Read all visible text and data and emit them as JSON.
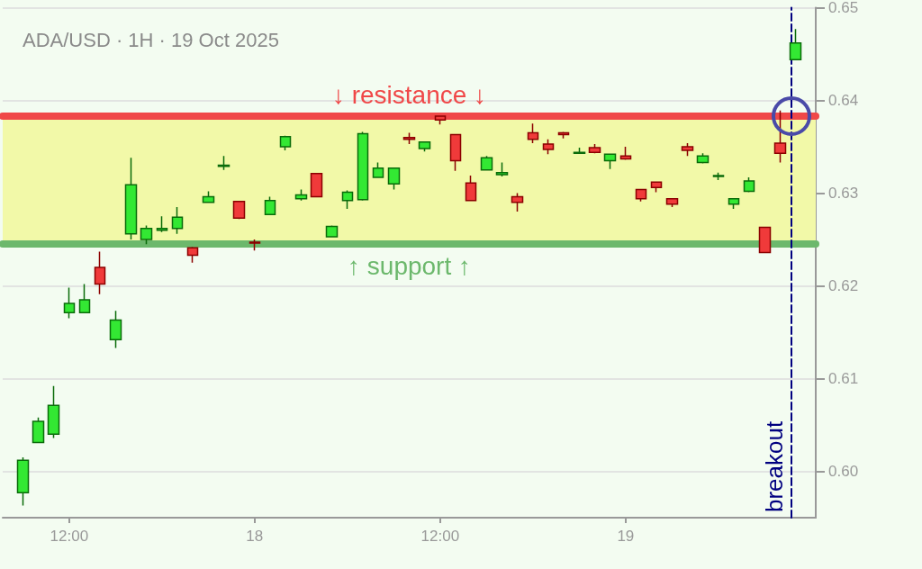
{
  "chart_data": {
    "type": "candlestick",
    "title": "ADA/USD · 1H · 19 Oct 2025",
    "x": [
      "2025-10-17T09:00",
      "2025-10-17T10:00",
      "2025-10-17T11:00",
      "2025-10-17T12:00",
      "2025-10-17T13:00",
      "2025-10-17T14:00",
      "2025-10-17T15:00",
      "2025-10-17T16:00",
      "2025-10-17T17:00",
      "2025-10-17T18:00",
      "2025-10-17T19:00",
      "2025-10-17T20:00",
      "2025-10-17T21:00",
      "2025-10-17T22:00",
      "2025-10-17T23:00",
      "2025-10-18T00:00",
      "2025-10-18T01:00",
      "2025-10-18T02:00",
      "2025-10-18T03:00",
      "2025-10-18T04:00",
      "2025-10-18T05:00",
      "2025-10-18T06:00",
      "2025-10-18T07:00",
      "2025-10-18T08:00",
      "2025-10-18T09:00",
      "2025-10-18T10:00",
      "2025-10-18T11:00",
      "2025-10-18T12:00",
      "2025-10-18T13:00",
      "2025-10-18T14:00",
      "2025-10-18T15:00",
      "2025-10-18T16:00",
      "2025-10-18T17:00",
      "2025-10-18T18:00",
      "2025-10-18T19:00",
      "2025-10-18T20:00",
      "2025-10-18T21:00",
      "2025-10-18T22:00",
      "2025-10-18T23:00",
      "2025-10-19T00:00",
      "2025-10-19T01:00",
      "2025-10-19T02:00",
      "2025-10-19T03:00",
      "2025-10-19T04:00",
      "2025-10-19T05:00",
      "2025-10-19T06:00",
      "2025-10-19T07:00",
      "2025-10-19T08:00",
      "2025-10-19T09:00",
      "2025-10-19T10:00",
      "2025-10-19T11:00"
    ],
    "ohlc": [
      [
        0.5977,
        0.6015,
        0.5963,
        0.6012
      ],
      [
        0.6031,
        0.6058,
        0.6031,
        0.6054
      ],
      [
        0.604,
        0.6092,
        0.6036,
        0.6071
      ],
      [
        0.6171,
        0.6198,
        0.6165,
        0.6181
      ],
      [
        0.6171,
        0.6202,
        0.6171,
        0.6185
      ],
      [
        0.622,
        0.6237,
        0.6191,
        0.6202
      ],
      [
        0.6142,
        0.6173,
        0.6133,
        0.6163
      ],
      [
        0.6256,
        0.6338,
        0.625,
        0.6309
      ],
      [
        0.625,
        0.6265,
        0.6245,
        0.6262
      ],
      [
        0.626,
        0.6275,
        0.6258,
        0.6262
      ],
      [
        0.6262,
        0.6285,
        0.6256,
        0.6274
      ],
      [
        0.6241,
        0.6242,
        0.6225,
        0.6233
      ],
      [
        0.629,
        0.6302,
        0.629,
        0.6296
      ],
      [
        0.6329,
        0.634,
        0.6325,
        0.633
      ],
      [
        0.6291,
        0.6291,
        0.6272,
        0.6273
      ],
      [
        0.6247,
        0.625,
        0.6238,
        0.6246
      ],
      [
        0.6277,
        0.6296,
        0.6277,
        0.6292
      ],
      [
        0.635,
        0.6362,
        0.6346,
        0.6361
      ],
      [
        0.6294,
        0.6304,
        0.6292,
        0.6298
      ],
      [
        0.6321,
        0.6321,
        0.6296,
        0.6296
      ],
      [
        0.6253,
        0.6265,
        0.6253,
        0.6264
      ],
      [
        0.6292,
        0.6303,
        0.6283,
        0.6301
      ],
      [
        0.6293,
        0.6366,
        0.6292,
        0.6364
      ],
      [
        0.6317,
        0.6333,
        0.6317,
        0.6327
      ],
      [
        0.631,
        0.6327,
        0.6304,
        0.6327
      ],
      [
        0.636,
        0.6365,
        0.6353,
        0.6358
      ],
      [
        0.6348,
        0.6355,
        0.6345,
        0.6355
      ],
      [
        0.6383,
        0.6383,
        0.6374,
        0.6379
      ],
      [
        0.6363,
        0.6363,
        0.6324,
        0.6335
      ],
      [
        0.6311,
        0.6319,
        0.6292,
        0.6292
      ],
      [
        0.6325,
        0.634,
        0.6325,
        0.6338
      ],
      [
        0.632,
        0.6333,
        0.6318,
        0.6322
      ],
      [
        0.6296,
        0.63,
        0.628,
        0.629
      ],
      [
        0.6365,
        0.6375,
        0.6354,
        0.6358
      ],
      [
        0.6353,
        0.6358,
        0.6342,
        0.6347
      ],
      [
        0.6365,
        0.6366,
        0.6359,
        0.6363
      ],
      [
        0.6343,
        0.6349,
        0.6343,
        0.6344
      ],
      [
        0.6349,
        0.6353,
        0.6343,
        0.6344
      ],
      [
        0.6335,
        0.6342,
        0.6326,
        0.6342
      ],
      [
        0.634,
        0.635,
        0.6336,
        0.6337
      ],
      [
        0.6304,
        0.6304,
        0.6291,
        0.6294
      ],
      [
        0.6312,
        0.6312,
        0.6301,
        0.6306
      ],
      [
        0.6294,
        0.6294,
        0.6285,
        0.6288
      ],
      [
        0.635,
        0.6354,
        0.634,
        0.6346
      ],
      [
        0.6333,
        0.6343,
        0.6332,
        0.634
      ],
      [
        0.6318,
        0.6322,
        0.6314,
        0.6319
      ],
      [
        0.6288,
        0.6294,
        0.6283,
        0.6294
      ],
      [
        0.6302,
        0.6317,
        0.6301,
        0.6313
      ],
      [
        0.6263,
        0.6263,
        0.6236,
        0.6236
      ],
      [
        0.6354,
        0.6389,
        0.6333,
        0.6343
      ],
      [
        0.6444,
        0.6477,
        0.6444,
        0.6462
      ]
    ],
    "xlim": [
      "2025-10-17T07:42",
      "2025-10-19T12:18"
    ],
    "xticks": [
      {
        "value": "2025-10-17T12:00",
        "label": "12:00"
      },
      {
        "value": "2025-10-18T00:00",
        "label": "18"
      },
      {
        "value": "2025-10-18T12:00",
        "label": "12:00"
      },
      {
        "value": "2025-10-19T00:00",
        "label": "19"
      }
    ],
    "ylim": [
      0.595,
      0.65
    ],
    "yticks": [
      {
        "value": 0.6,
        "label": "0.60"
      },
      {
        "value": 0.61,
        "label": "0.61"
      },
      {
        "value": 0.62,
        "label": "0.62"
      },
      {
        "value": 0.63,
        "label": "0.63"
      },
      {
        "value": 0.64,
        "label": "0.64"
      },
      {
        "value": 0.65,
        "label": "0.65"
      }
    ],
    "grid": "y",
    "ref_lines": [
      {
        "axis": "y",
        "value": 0.6383,
        "label": "↓ resistance ↓",
        "color": "#f04848"
      },
      {
        "axis": "y",
        "value": 0.6245,
        "label": "↑ support ↑",
        "color": "#6cb86c"
      },
      {
        "axis": "x",
        "value": "2025-10-19T10:42",
        "label": "breakout",
        "color": "#000080",
        "line_style": "dashed"
      }
    ],
    "bands": [
      {
        "axis": "y",
        "from": 0.6245,
        "to": 0.6383,
        "color": "#f2f9a8"
      }
    ]
  }
}
